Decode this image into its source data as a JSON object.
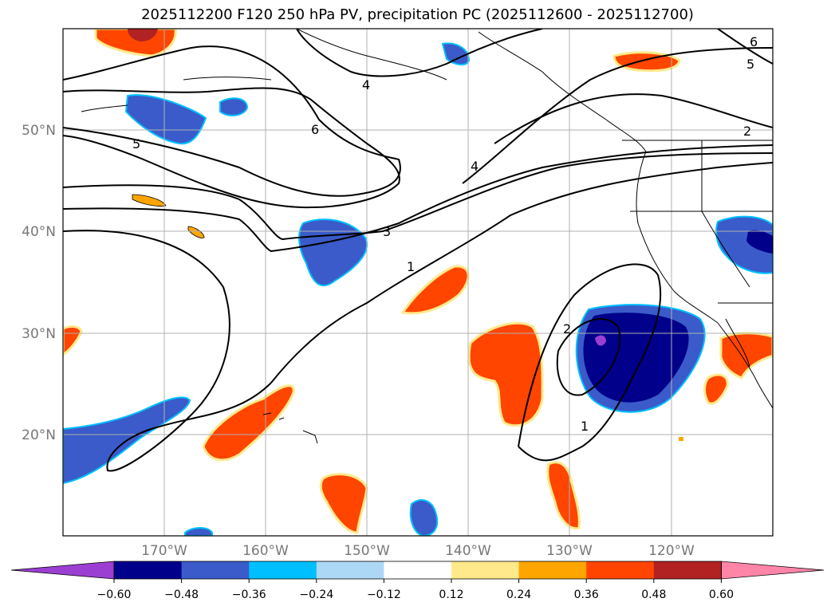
{
  "title": "2025112200 F120 250 hPa PV, precipitation PC (2025112600 - 2025112700)",
  "lat_labels": [
    "50°N",
    "40°N",
    "30°N",
    "20°N"
  ],
  "lon_labels": [
    "170°W",
    "160°W",
    "150°W",
    "140°W",
    "130°W",
    "120°W"
  ],
  "contour_labels": [
    "6",
    "5",
    "4",
    "6",
    "5",
    "2",
    "4",
    "3",
    "1",
    "2",
    "1"
  ],
  "colorbar": {
    "ticks": [
      "−0.60",
      "−0.48",
      "−0.36",
      "−0.24",
      "−0.12",
      "0.12",
      "0.24",
      "0.36",
      "0.48",
      "0.60"
    ],
    "colors": [
      "#9a3fd1",
      "#00008b",
      "#3a5bc9",
      "#00bfff",
      "#add8f5",
      "#ffffff",
      "#ffe98a",
      "#ffa500",
      "#ff4500",
      "#b22222",
      "#ff85a8"
    ]
  },
  "map_extent": {
    "lon_min": -180,
    "lon_max": -110,
    "lat_min": 10,
    "lat_max": 60
  }
}
